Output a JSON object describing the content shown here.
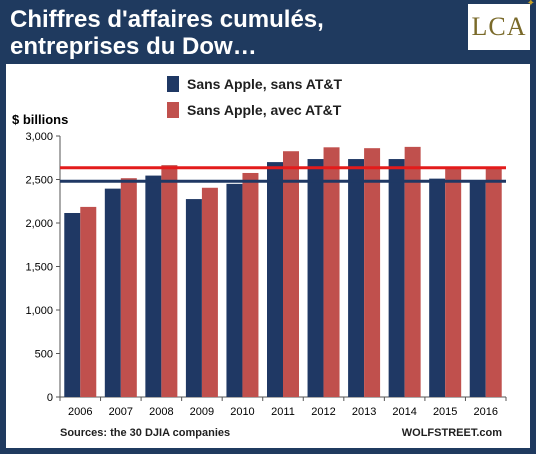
{
  "header": {
    "title": "Chiffres d'affaires cumulés, entreprises du Dow…",
    "logo_text": "LCA"
  },
  "colors": {
    "series_1": "#1f3864",
    "series_2": "#c0504d",
    "hline_1": "#1f3864",
    "hline_2": "#e31b1b",
    "header_bg": "#1f3a5f"
  },
  "chart_data": {
    "type": "bar",
    "categories": [
      "2006",
      "2007",
      "2008",
      "2009",
      "2010",
      "2011",
      "2012",
      "2013",
      "2014",
      "2015",
      "2016"
    ],
    "series": [
      {
        "name": "Sans Apple, sans AT&T",
        "values": [
          2115,
          2395,
          2545,
          2275,
          2450,
          2700,
          2735,
          2735,
          2735,
          2510,
          2490
        ]
      },
      {
        "name": "Sans Apple, avec AT&T",
        "values": [
          2185,
          2515,
          2665,
          2405,
          2575,
          2825,
          2870,
          2860,
          2875,
          2640,
          2645
        ]
      }
    ],
    "reference_lines": [
      {
        "series_color": "hline_1",
        "value": 2480
      },
      {
        "series_color": "hline_2",
        "value": 2635
      }
    ],
    "ylabel": "$ billions",
    "xlabel": "",
    "ylim": [
      0,
      3000
    ],
    "yticks": [
      "0",
      "500",
      "1,000",
      "1,500",
      "2,000",
      "2,500",
      "3,000"
    ],
    "ytick_values": [
      0,
      500,
      1000,
      1500,
      2000,
      2500,
      3000
    ],
    "legend_position": "top",
    "grid": false,
    "source_note": "Sources: the 30 DJIA companies",
    "credit": "WOLFSTREET.com"
  }
}
